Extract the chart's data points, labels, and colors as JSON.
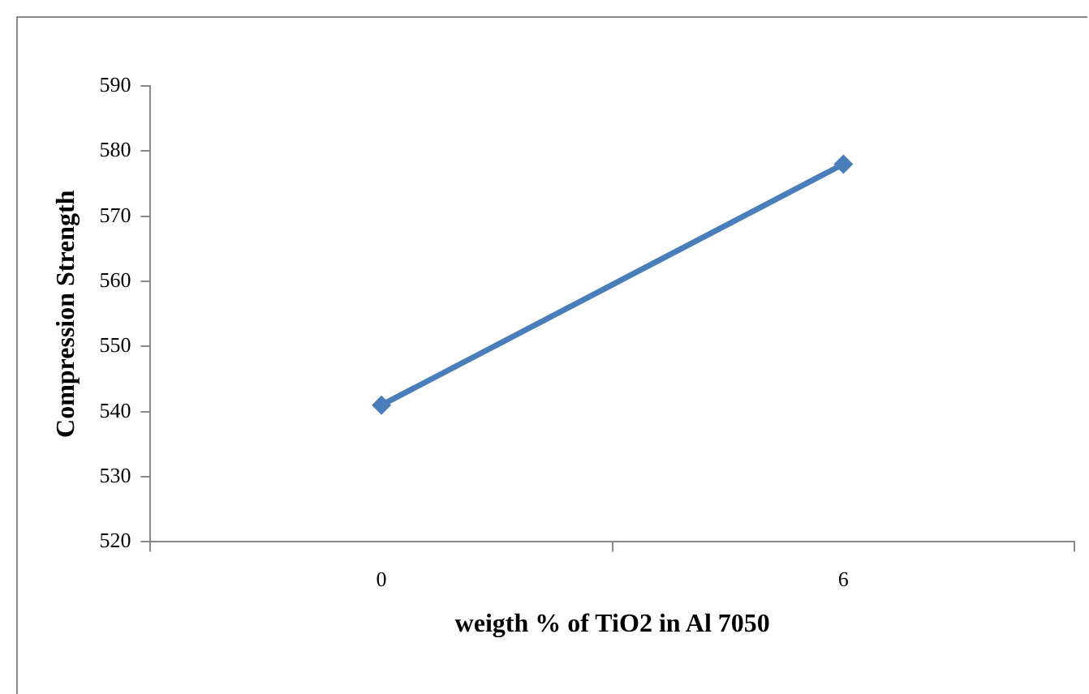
{
  "chart_data": {
    "type": "line",
    "xlabel": "weigth % of TiO2 in Al 7050",
    "ylabel": "Compression Strength",
    "categories": [
      "0",
      "6"
    ],
    "series": [
      {
        "color": "#4a7ebb",
        "values": [
          541,
          578
        ]
      }
    ],
    "ylim": [
      520,
      590
    ],
    "yticks": [
      520,
      530,
      540,
      550,
      560,
      570,
      580,
      590
    ],
    "grid": false,
    "legend": false,
    "marker": "diamond",
    "line_style": "solid"
  }
}
